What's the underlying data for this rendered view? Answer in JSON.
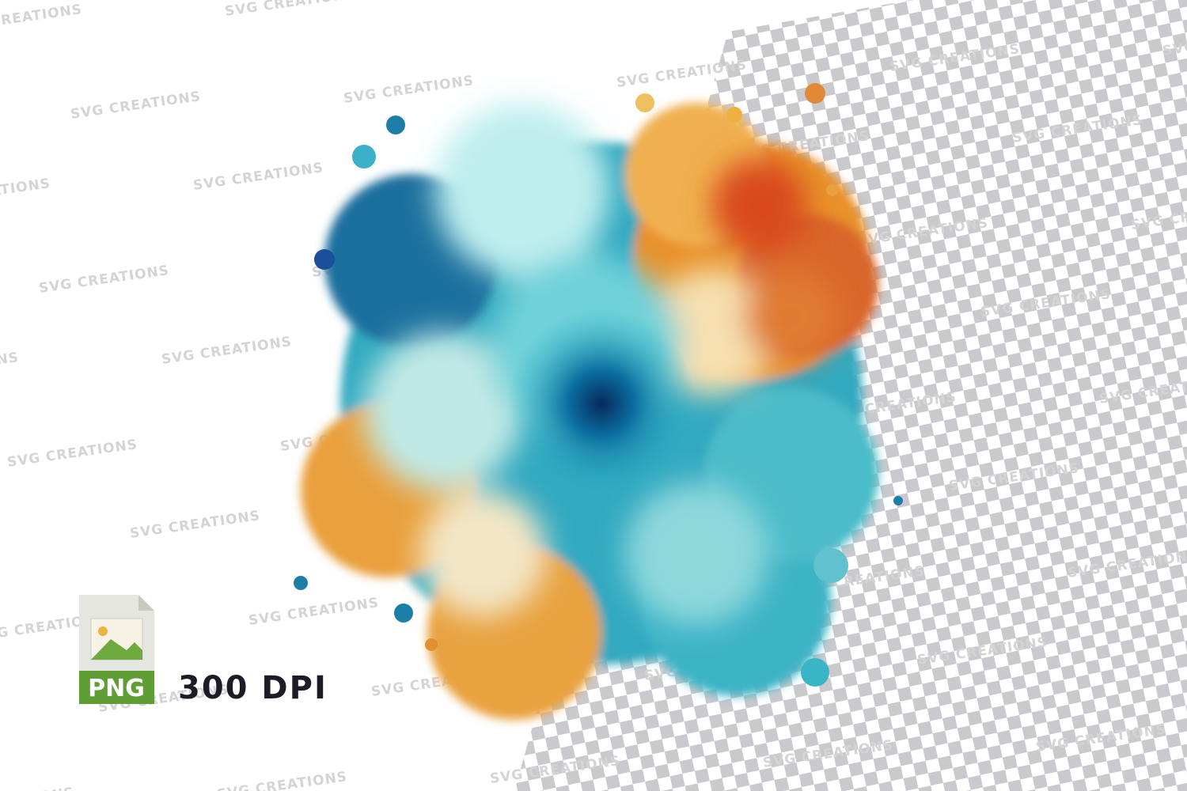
{
  "watermark": "SVG CREATIONS",
  "badge": {
    "format": "PNG",
    "resolution": "300 DPI"
  }
}
